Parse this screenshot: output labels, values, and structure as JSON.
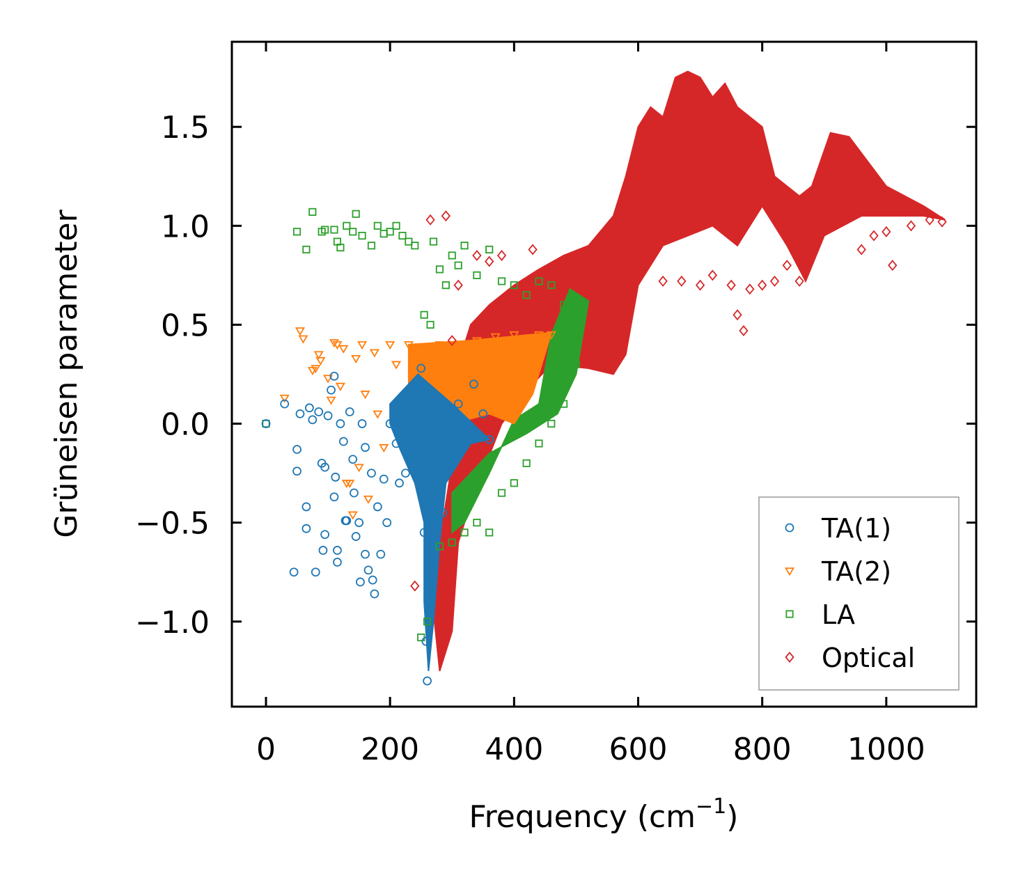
{
  "chart_data": {
    "type": "scatter",
    "title": "",
    "xlabel": "Frequency (cm",
    "xlabel_sup": "−1",
    "xlabel_end": ")",
    "ylabel": "Grüneisen parameter",
    "xlim": [
      -55,
      1145
    ],
    "ylim": [
      -1.43,
      1.93
    ],
    "xticks": [
      0,
      200,
      400,
      600,
      800,
      1000
    ],
    "xtick_labels": [
      "0",
      "200",
      "400",
      "600",
      "800",
      "1000"
    ],
    "yticks": [
      -1.0,
      -0.5,
      0.0,
      0.5,
      1.0,
      1.5
    ],
    "ytick_labels": [
      "−1.0",
      "−0.5",
      "0.0",
      "0.5",
      "1.0",
      "1.5"
    ],
    "legend_position": "lower-right",
    "series": [
      {
        "name": "TA(1)",
        "marker": "circle",
        "color": "#1f77b4",
        "points": [
          [
            0,
            0.0
          ],
          [
            30,
            0.1
          ],
          [
            45,
            -0.75
          ],
          [
            50,
            -0.13
          ],
          [
            50,
            -0.24
          ],
          [
            55,
            0.05
          ],
          [
            65,
            -0.42
          ],
          [
            65,
            -0.53
          ],
          [
            70,
            0.08
          ],
          [
            75,
            0.02
          ],
          [
            80,
            -0.75
          ],
          [
            85,
            0.06
          ],
          [
            90,
            -0.2
          ],
          [
            92,
            -0.64
          ],
          [
            95,
            -0.22
          ],
          [
            95,
            -0.56
          ],
          [
            100,
            0.04
          ],
          [
            105,
            0.17
          ],
          [
            110,
            0.24
          ],
          [
            110,
            -0.37
          ],
          [
            112,
            -0.27
          ],
          [
            115,
            -0.64
          ],
          [
            115,
            -0.7
          ],
          [
            120,
            0.0
          ],
          [
            125,
            -0.09
          ],
          [
            128,
            -0.49
          ],
          [
            130,
            -0.49
          ],
          [
            135,
            0.06
          ],
          [
            140,
            -0.18
          ],
          [
            142,
            -0.35
          ],
          [
            145,
            -0.57
          ],
          [
            150,
            -0.5
          ],
          [
            152,
            -0.8
          ],
          [
            155,
            0.0
          ],
          [
            160,
            -0.12
          ],
          [
            160,
            -0.66
          ],
          [
            165,
            -0.74
          ],
          [
            170,
            -0.25
          ],
          [
            172,
            -0.79
          ],
          [
            175,
            -0.86
          ],
          [
            180,
            -0.42
          ],
          [
            185,
            -0.66
          ],
          [
            190,
            -0.28
          ],
          [
            195,
            -0.5
          ],
          [
            200,
            0.0
          ],
          [
            210,
            -0.1
          ],
          [
            215,
            -0.3
          ],
          [
            225,
            -0.25
          ],
          [
            230,
            0.12
          ],
          [
            240,
            -0.05
          ],
          [
            245,
            0.2
          ],
          [
            250,
            0.28
          ],
          [
            255,
            -0.55
          ],
          [
            258,
            -1.1
          ],
          [
            260,
            -1.3
          ],
          [
            262,
            -0.9
          ],
          [
            265,
            -0.7
          ],
          [
            270,
            -0.2
          ],
          [
            275,
            -0.05
          ],
          [
            285,
            -0.45
          ],
          [
            290,
            0.05
          ],
          [
            300,
            -0.15
          ],
          [
            310,
            0.1
          ],
          [
            320,
            -0.05
          ],
          [
            335,
            0.2
          ],
          [
            350,
            0.05
          ],
          [
            360,
            -0.08
          ]
        ],
        "cloud": [
          [
            200,
            0.1
          ],
          [
            245,
            0.25
          ],
          [
            300,
            0.1
          ],
          [
            360,
            -0.08
          ],
          [
            330,
            -0.1
          ],
          [
            290,
            -0.3
          ],
          [
            280,
            -0.6
          ],
          [
            270,
            -1.0
          ],
          [
            262,
            -1.25
          ],
          [
            255,
            -0.9
          ],
          [
            255,
            -0.5
          ],
          [
            240,
            -0.3
          ],
          [
            215,
            -0.12
          ],
          [
            200,
            0.0
          ]
        ]
      },
      {
        "name": "TA(2)",
        "marker": "triangle",
        "color": "#ff7f0e",
        "points": [
          [
            30,
            0.13
          ],
          [
            55,
            0.47
          ],
          [
            60,
            0.43
          ],
          [
            75,
            0.27
          ],
          [
            80,
            0.28
          ],
          [
            85,
            0.35
          ],
          [
            88,
            0.32
          ],
          [
            100,
            0.23
          ],
          [
            105,
            0.12
          ],
          [
            110,
            0.41
          ],
          [
            115,
            0.4
          ],
          [
            120,
            0.19
          ],
          [
            125,
            0.38
          ],
          [
            130,
            -0.3
          ],
          [
            135,
            -0.3
          ],
          [
            140,
            -0.46
          ],
          [
            145,
            0.33
          ],
          [
            150,
            -0.22
          ],
          [
            155,
            0.4
          ],
          [
            160,
            0.15
          ],
          [
            165,
            -0.38
          ],
          [
            175,
            0.36
          ],
          [
            180,
            0.05
          ],
          [
            190,
            -0.12
          ],
          [
            200,
            0.4
          ],
          [
            210,
            0.3
          ],
          [
            230,
            0.4
          ],
          [
            250,
            0.37
          ],
          [
            280,
            0.4
          ],
          [
            310,
            0.3
          ],
          [
            340,
            0.42
          ],
          [
            370,
            0.44
          ],
          [
            400,
            0.45
          ],
          [
            420,
            0.2
          ],
          [
            440,
            0.45
          ],
          [
            460,
            0.45
          ]
        ],
        "cloud": [
          [
            230,
            0.4
          ],
          [
            330,
            0.42
          ],
          [
            460,
            0.46
          ],
          [
            430,
            0.15
          ],
          [
            400,
            0.0
          ],
          [
            360,
            0.05
          ],
          [
            300,
            0.0
          ],
          [
            250,
            0.05
          ],
          [
            230,
            0.2
          ]
        ]
      },
      {
        "name": "LA",
        "marker": "square",
        "color": "#2ca02c",
        "points": [
          [
            0,
            0.0
          ],
          [
            50,
            0.97
          ],
          [
            65,
            0.88
          ],
          [
            75,
            1.07
          ],
          [
            90,
            0.97
          ],
          [
            95,
            0.98
          ],
          [
            110,
            0.98
          ],
          [
            115,
            0.92
          ],
          [
            120,
            0.89
          ],
          [
            130,
            1.0
          ],
          [
            140,
            0.97
          ],
          [
            145,
            1.06
          ],
          [
            155,
            0.95
          ],
          [
            170,
            0.9
          ],
          [
            180,
            1.0
          ],
          [
            190,
            0.96
          ],
          [
            200,
            0.97
          ],
          [
            210,
            1.0
          ],
          [
            220,
            0.95
          ],
          [
            230,
            0.92
          ],
          [
            240,
            0.9
          ],
          [
            250,
            -1.08
          ],
          [
            255,
            0.55
          ],
          [
            260,
            -1.0
          ],
          [
            265,
            0.5
          ],
          [
            270,
            0.92
          ],
          [
            280,
            0.78
          ],
          [
            290,
            0.7
          ],
          [
            300,
            0.85
          ],
          [
            310,
            0.8
          ],
          [
            320,
            0.9
          ],
          [
            340,
            0.75
          ],
          [
            360,
            0.88
          ],
          [
            380,
            0.72
          ],
          [
            400,
            0.7
          ],
          [
            420,
            0.65
          ],
          [
            440,
            0.72
          ],
          [
            460,
            0.7
          ],
          [
            480,
            0.6
          ],
          [
            500,
            0.5
          ],
          [
            280,
            -0.62
          ],
          [
            300,
            -0.6
          ],
          [
            320,
            -0.55
          ],
          [
            340,
            -0.5
          ],
          [
            360,
            -0.55
          ],
          [
            380,
            -0.35
          ],
          [
            400,
            -0.3
          ],
          [
            420,
            -0.2
          ],
          [
            440,
            -0.1
          ],
          [
            460,
            0.0
          ],
          [
            480,
            0.1
          ],
          [
            500,
            0.3
          ]
        ],
        "cloud": [
          [
            300,
            -0.35
          ],
          [
            360,
            -0.15
          ],
          [
            420,
            -0.05
          ],
          [
            470,
            0.05
          ],
          [
            500,
            0.25
          ],
          [
            520,
            0.62
          ],
          [
            490,
            0.68
          ],
          [
            460,
            0.45
          ],
          [
            440,
            0.1
          ],
          [
            400,
            0.02
          ],
          [
            360,
            -0.25
          ],
          [
            320,
            -0.5
          ],
          [
            300,
            -0.55
          ]
        ]
      },
      {
        "name": "Optical",
        "marker": "diamond",
        "color": "#d62728",
        "points": [
          [
            240,
            -0.82
          ],
          [
            265,
            1.03
          ],
          [
            290,
            1.05
          ],
          [
            300,
            0.42
          ],
          [
            310,
            0.7
          ],
          [
            340,
            0.85
          ],
          [
            360,
            0.82
          ],
          [
            380,
            0.85
          ],
          [
            430,
            0.88
          ],
          [
            490,
            0.78
          ],
          [
            540,
            0.95
          ],
          [
            600,
            0.8
          ],
          [
            640,
            0.72
          ],
          [
            670,
            0.72
          ],
          [
            700,
            0.7
          ],
          [
            720,
            0.75
          ],
          [
            750,
            0.7
          ],
          [
            760,
            0.55
          ],
          [
            770,
            0.47
          ],
          [
            780,
            0.68
          ],
          [
            800,
            0.7
          ],
          [
            820,
            0.72
          ],
          [
            840,
            0.8
          ],
          [
            845,
            0.98
          ],
          [
            860,
            0.72
          ],
          [
            880,
            1.1
          ],
          [
            960,
            0.88
          ],
          [
            980,
            0.95
          ],
          [
            1000,
            0.97
          ],
          [
            1010,
            0.8
          ],
          [
            1040,
            1.0
          ],
          [
            1070,
            1.03
          ],
          [
            1090,
            1.02
          ]
        ],
        "cloud": [
          [
            265,
            -0.8
          ],
          [
            280,
            -1.25
          ],
          [
            300,
            -1.05
          ],
          [
            310,
            -0.6
          ],
          [
            330,
            -0.4
          ],
          [
            380,
            0.0
          ],
          [
            430,
            0.2
          ],
          [
            460,
            0.3
          ],
          [
            520,
            0.28
          ],
          [
            560,
            0.25
          ],
          [
            580,
            0.35
          ],
          [
            600,
            0.7
          ],
          [
            640,
            0.9
          ],
          [
            680,
            0.95
          ],
          [
            720,
            1.0
          ],
          [
            760,
            0.9
          ],
          [
            800,
            1.1
          ],
          [
            840,
            0.9
          ],
          [
            870,
            0.72
          ],
          [
            900,
            0.95
          ],
          [
            960,
            1.05
          ],
          [
            1020,
            1.05
          ],
          [
            1060,
            1.05
          ],
          [
            1095,
            1.03
          ],
          [
            1060,
            1.1
          ],
          [
            1000,
            1.2
          ],
          [
            940,
            1.45
          ],
          [
            910,
            1.47
          ],
          [
            880,
            1.2
          ],
          [
            860,
            1.15
          ],
          [
            840,
            1.2
          ],
          [
            820,
            1.25
          ],
          [
            800,
            1.5
          ],
          [
            780,
            1.55
          ],
          [
            760,
            1.6
          ],
          [
            740,
            1.72
          ],
          [
            720,
            1.65
          ],
          [
            700,
            1.75
          ],
          [
            680,
            1.78
          ],
          [
            660,
            1.75
          ],
          [
            640,
            1.55
          ],
          [
            620,
            1.6
          ],
          [
            600,
            1.5
          ],
          [
            580,
            1.25
          ],
          [
            560,
            1.05
          ],
          [
            520,
            0.9
          ],
          [
            480,
            0.85
          ],
          [
            440,
            0.78
          ],
          [
            400,
            0.7
          ],
          [
            360,
            0.6
          ],
          [
            330,
            0.5
          ],
          [
            310,
            0.3
          ],
          [
            300,
            -0.2
          ],
          [
            285,
            -0.5
          ],
          [
            270,
            -0.7
          ]
        ]
      }
    ]
  }
}
